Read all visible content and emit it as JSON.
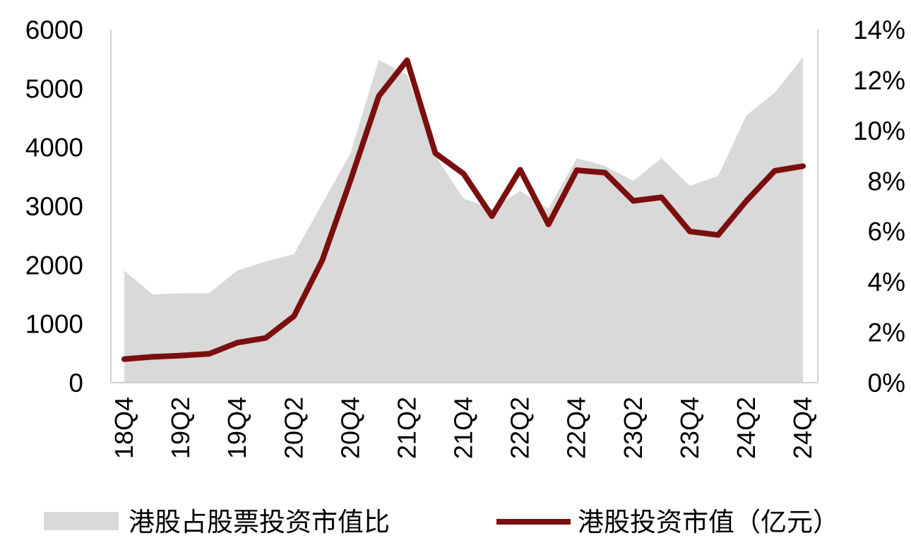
{
  "chart_data": {
    "type": "line",
    "subtype": "area + line, dual axis",
    "title": "",
    "xlabel": "",
    "ylabel_left": "",
    "ylabel_right": "",
    "x": [
      "18Q4",
      "19Q1",
      "19Q2",
      "19Q3",
      "19Q4",
      "20Q1",
      "20Q2",
      "20Q3",
      "20Q4",
      "21Q1",
      "21Q2",
      "21Q3",
      "21Q4",
      "22Q1",
      "22Q2",
      "22Q3",
      "22Q4",
      "23Q1",
      "23Q2",
      "23Q3",
      "23Q4",
      "24Q1",
      "24Q2",
      "24Q3",
      "24Q4"
    ],
    "x_tick_labels": [
      "18Q4",
      "19Q2",
      "19Q4",
      "20Q2",
      "20Q4",
      "21Q2",
      "21Q4",
      "22Q2",
      "22Q4",
      "23Q2",
      "23Q4",
      "24Q2",
      "24Q4"
    ],
    "left_axis": {
      "ylim": [
        0,
        6000
      ],
      "ticks": [
        0,
        1000,
        2000,
        3000,
        4000,
        5000,
        6000
      ],
      "tick_labels": [
        "0",
        "1000",
        "2000",
        "3000",
        "4000",
        "5000",
        "6000"
      ]
    },
    "right_axis": {
      "ylim": [
        0,
        14
      ],
      "ticks": [
        0,
        2,
        4,
        6,
        8,
        10,
        12,
        14
      ],
      "tick_labels": [
        "0%",
        "2%",
        "4%",
        "6%",
        "8%",
        "10%",
        "12%",
        "14%"
      ]
    },
    "grid": false,
    "legend_position": "bottom",
    "series": [
      {
        "name": "港股占股票投资市值比",
        "kind": "area",
        "axis": "right",
        "unit": "%",
        "color": "#d9d9d9",
        "values": [
          4.45,
          3.5,
          3.55,
          3.55,
          4.45,
          4.8,
          5.1,
          7.1,
          9.1,
          12.8,
          12.2,
          9.0,
          7.3,
          6.9,
          7.6,
          6.9,
          8.9,
          8.6,
          8.0,
          8.9,
          7.8,
          8.2,
          10.6,
          11.5,
          12.9
        ]
      },
      {
        "name": "港股投资市值（亿元）",
        "kind": "line",
        "axis": "left",
        "color": "#7b0e0e",
        "values": [
          400,
          440,
          460,
          490,
          680,
          760,
          1130,
          2080,
          3440,
          4870,
          5480,
          3900,
          3550,
          2830,
          3620,
          2690,
          3610,
          3570,
          3090,
          3150,
          2570,
          2510,
          3090,
          3600,
          3680
        ]
      }
    ]
  }
}
